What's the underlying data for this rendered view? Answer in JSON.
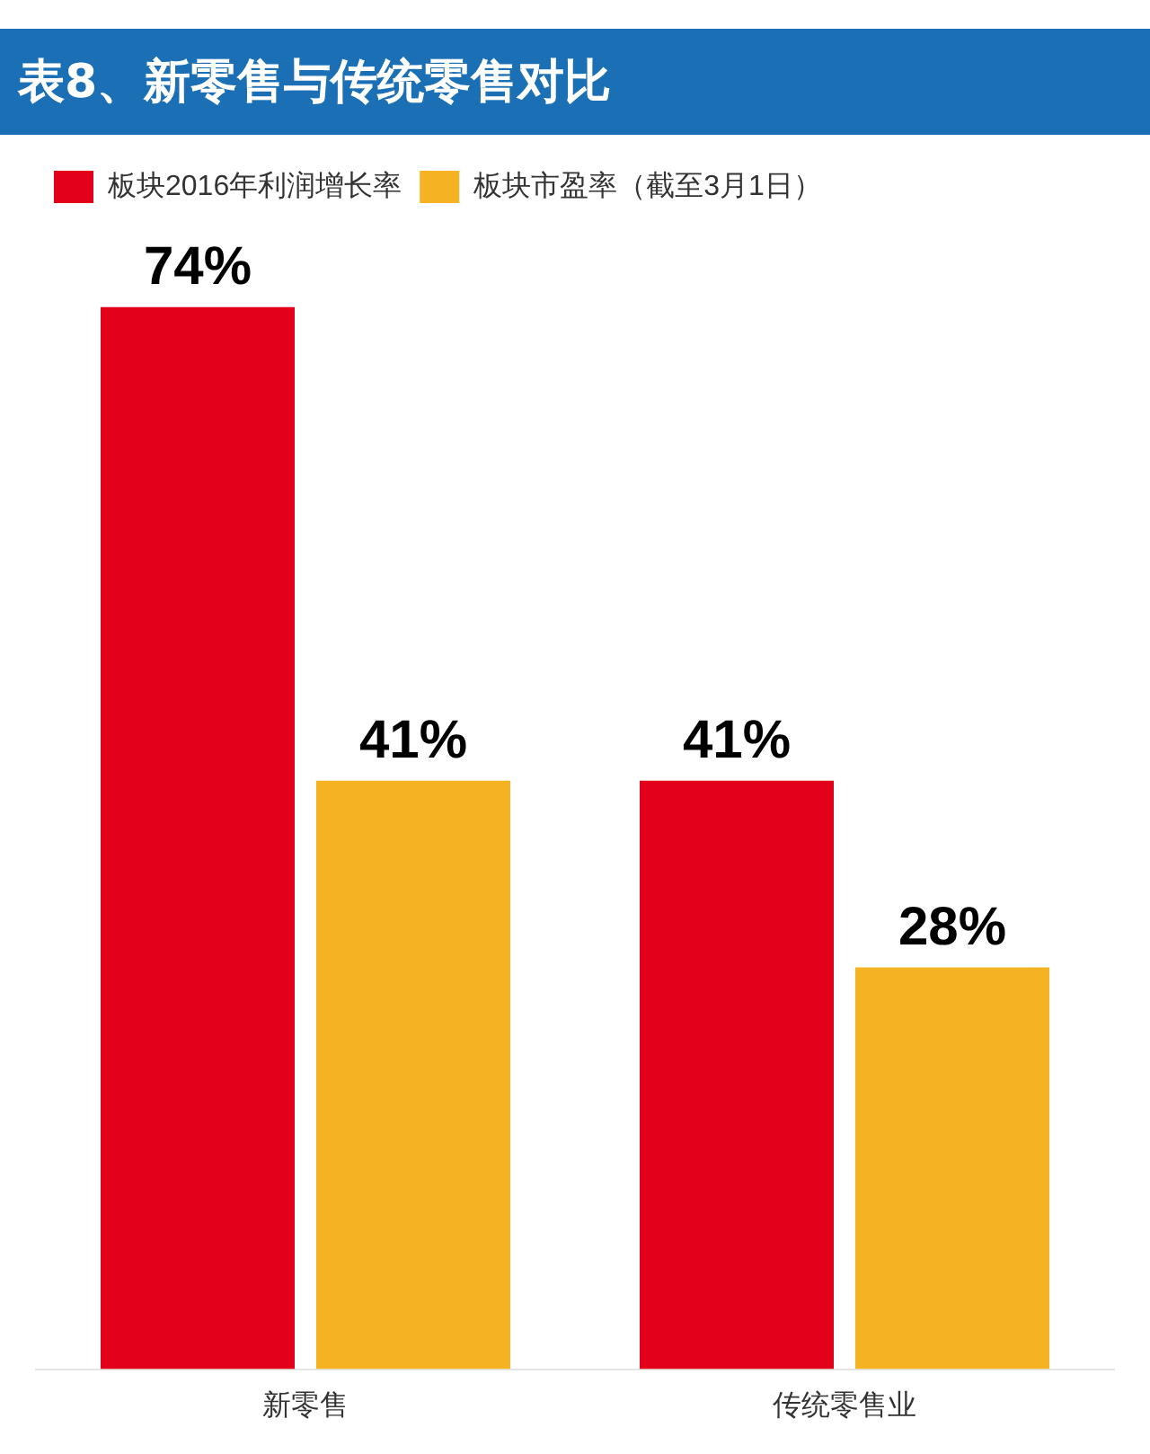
{
  "chart_data": {
    "type": "bar",
    "title": "表8、新零售与传统零售对比",
    "categories": [
      "新零售",
      "传统零售业"
    ],
    "series": [
      {
        "name": "板块2016年利润增长率",
        "color": "#e3001b",
        "values": [
          74,
          41
        ],
        "value_labels": [
          "74%",
          "41%"
        ]
      },
      {
        "name": "板块市盈率（截至3月1日）",
        "color": "#f5b324",
        "values": [
          41,
          28
        ],
        "value_labels": [
          "41%",
          "28%"
        ]
      }
    ],
    "tick_labels": "x",
    "grid": false,
    "legend": "top left"
  }
}
